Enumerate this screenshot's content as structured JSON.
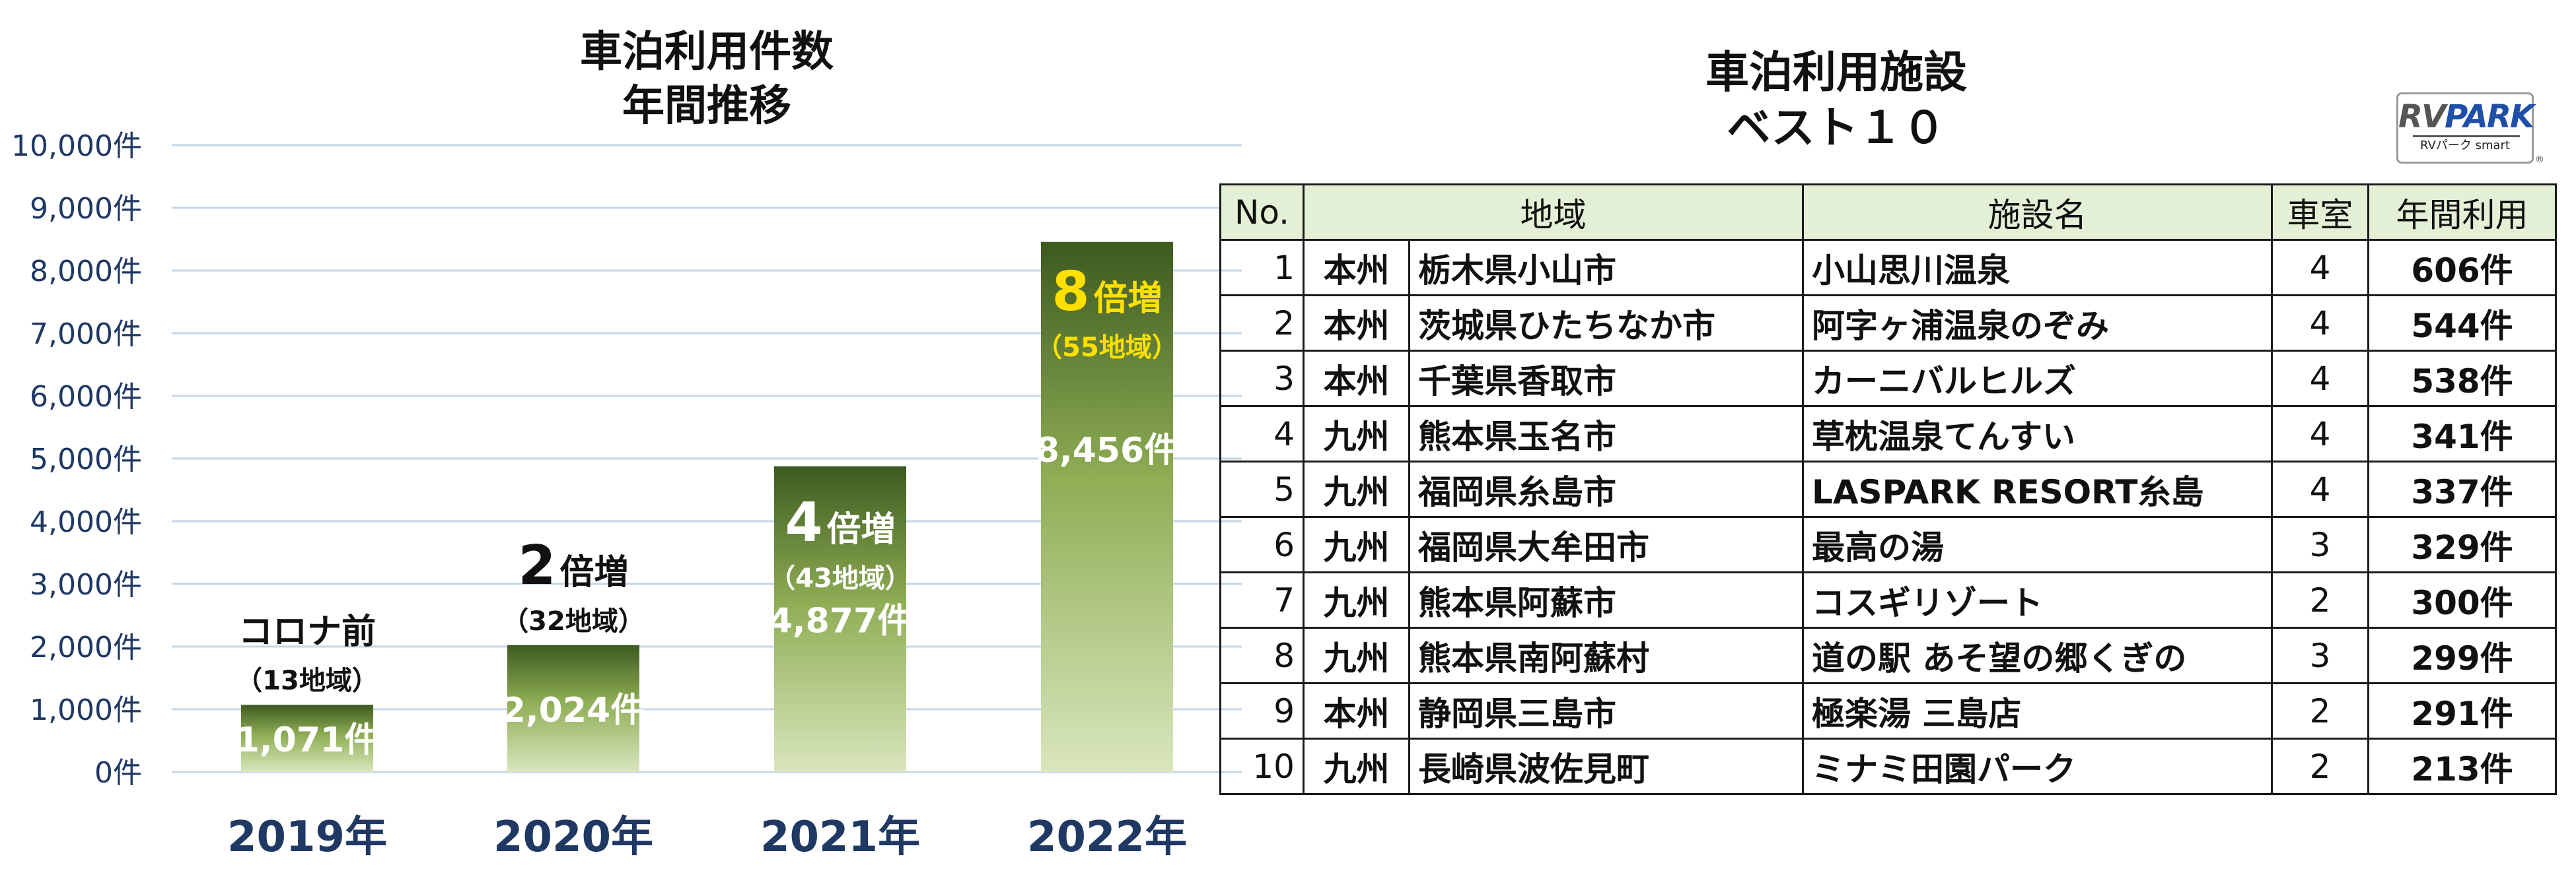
{
  "chart_title": [
    "車泊利用件数",
    "年間推移"
  ],
  "table_title": [
    "車泊利用施設",
    "ベスト１０"
  ],
  "logo": {
    "main_a": "RV",
    "main_b": "PARK",
    "sub": "RVパーク smart",
    "mark": "®"
  },
  "colors": {
    "bar_top": "#3d5a1f",
    "bar_mid": "#8fae55",
    "bar_bottom": "#d9e6bd",
    "accent": "#ffe000",
    "axis_text": "#1f3864",
    "grid": "#c5d6e8",
    "table_header": "#e4f0d6"
  },
  "chart_data": {
    "type": "bar",
    "categories": [
      "2019年",
      "2020年",
      "2021年",
      "2022年"
    ],
    "values": [
      1071,
      2024,
      4877,
      8456
    ],
    "value_labels": [
      "1,071件",
      "2,024件",
      "4,877件",
      "8,456件"
    ],
    "ylim": [
      0,
      10000
    ],
    "yticks": [
      0,
      1000,
      2000,
      3000,
      4000,
      5000,
      6000,
      7000,
      8000,
      9000,
      10000
    ],
    "ytick_labels": [
      "0件",
      "1,000件",
      "2,000件",
      "3,000件",
      "4,000件",
      "5,000件",
      "6,000件",
      "7,000件",
      "8,000件",
      "9,000件",
      "10,000件"
    ],
    "grid": true,
    "annotations": [
      {
        "main": "コロナ前",
        "sub": "（13地域）"
      },
      {
        "main": "2",
        "suffix": "倍増",
        "sub": "（32地域）"
      },
      {
        "main": "4",
        "suffix": "倍増",
        "sub": "（43地域）"
      },
      {
        "main": "8",
        "suffix": "倍増",
        "sub": "（55地域）"
      }
    ]
  },
  "table": {
    "headers": [
      "No.",
      "地域",
      "施設名",
      "車室",
      "年間利用"
    ],
    "rows": [
      {
        "no": "1",
        "region": "本州",
        "city": "栃木県小山市",
        "facility": "小山思川温泉",
        "rooms": "4",
        "annual": "606件"
      },
      {
        "no": "2",
        "region": "本州",
        "city": "茨城県ひたちなか市",
        "facility": "阿字ヶ浦温泉のぞみ",
        "rooms": "4",
        "annual": "544件"
      },
      {
        "no": "3",
        "region": "本州",
        "city": "千葉県香取市",
        "facility": "カーニバルヒルズ",
        "rooms": "4",
        "annual": "538件"
      },
      {
        "no": "4",
        "region": "九州",
        "city": "熊本県玉名市",
        "facility": "草枕温泉てんすい",
        "rooms": "4",
        "annual": "341件"
      },
      {
        "no": "5",
        "region": "九州",
        "city": "福岡県糸島市",
        "facility": "LASPARK RESORT糸島",
        "rooms": "4",
        "annual": "337件"
      },
      {
        "no": "6",
        "region": "九州",
        "city": "福岡県大牟田市",
        "facility": "最高の湯",
        "rooms": "3",
        "annual": "329件"
      },
      {
        "no": "7",
        "region": "九州",
        "city": "熊本県阿蘇市",
        "facility": "コスギリゾート",
        "rooms": "2",
        "annual": "300件"
      },
      {
        "no": "8",
        "region": "九州",
        "city": "熊本県南阿蘇村",
        "facility": "道の駅 あそ望の郷くぎの",
        "rooms": "3",
        "annual": "299件"
      },
      {
        "no": "9",
        "region": "本州",
        "city": "静岡県三島市",
        "facility": "極楽湯 三島店",
        "rooms": "2",
        "annual": "291件"
      },
      {
        "no": "10",
        "region": "九州",
        "city": "長崎県波佐見町",
        "facility": "ミナミ田園パーク",
        "rooms": "2",
        "annual": "213件"
      }
    ]
  }
}
